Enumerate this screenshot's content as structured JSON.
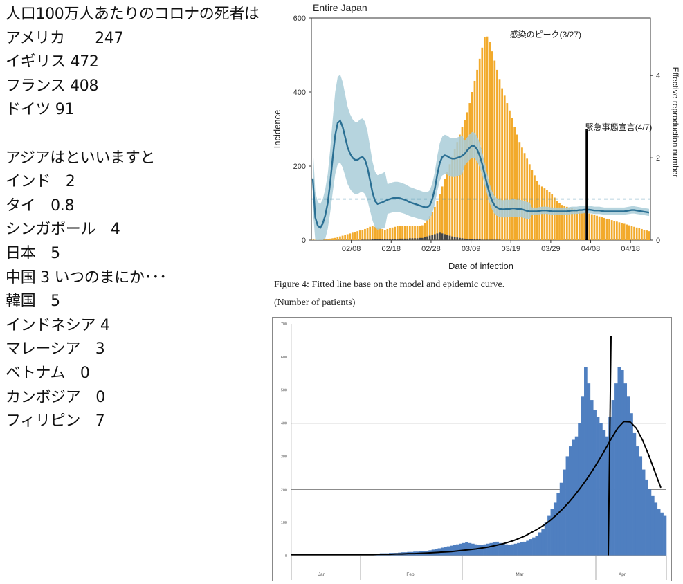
{
  "left_panel": {
    "lines": [
      "人口100万人あたりのコロナの死者は",
      "アメリカ　　247",
      "イギリス 472",
      "フランス 408",
      "ドイツ 91",
      "",
      "アジアはといいますと",
      "インド　2",
      "タイ　0.8",
      "シンガポール　4",
      "日本　5",
      "中国 3 いつのまにか･･･",
      "韓国　5",
      "インドネシア 4",
      "マレーシア　3",
      "ベトナム　0",
      "カンボジア　0",
      "フィリピン　7"
    ]
  },
  "figure_caption": {
    "line1": "Figure 4: Fitted line base on the model and epidemic curve.",
    "line2": "(Number of patients)"
  },
  "colors": {
    "orange_bars": "#f2aa2b",
    "dark_bars": "#454545",
    "band": "#a9ccd8",
    "fit_line": "#2a6f93",
    "dashed": "#4a90b0",
    "blue_bars": "#4f7fc0"
  },
  "chart_data": [
    {
      "type": "bar",
      "title": "Entire Japan",
      "xlabel": "Date of infection",
      "ylabel": "Incidence",
      "y2label": "Effective reproduction number",
      "ylim": [
        0,
        600
      ],
      "y_ticks": [
        0,
        200,
        400,
        600
      ],
      "y2lim": [
        0,
        5.4
      ],
      "y2_ticks": [
        0,
        2,
        4
      ],
      "x_ticks": [
        "02/08",
        "02/18",
        "02/28",
        "03/09",
        "03/19",
        "03/29",
        "04/08",
        "04/18"
      ],
      "x_start": "01/29",
      "x_end": "04/23",
      "annotations": [
        {
          "text": "感染のピーク(3/27)",
          "date": "03/27"
        },
        {
          "text": "緊急事態宣言(4/7)",
          "date": "04/07"
        }
      ],
      "series": [
        {
          "type": "bar",
          "values": [
            1,
            1,
            1,
            2,
            2,
            3,
            3,
            4,
            5,
            6,
            8,
            10,
            12,
            14,
            16,
            18,
            20,
            22,
            24,
            26,
            28,
            30,
            33,
            36,
            38,
            36,
            34,
            32,
            30,
            28,
            30,
            32,
            34,
            36,
            38,
            38,
            38,
            38,
            38,
            38,
            38,
            38,
            38,
            38,
            40,
            45,
            55,
            65,
            75,
            90,
            105,
            125,
            145,
            165,
            185,
            205,
            225,
            245,
            265,
            285,
            305,
            325,
            345,
            370,
            400,
            430,
            460,
            490,
            520,
            548,
            550,
            535,
            510,
            485,
            460,
            435,
            410,
            390,
            370,
            350,
            330,
            305,
            285,
            265,
            250,
            235,
            220,
            205,
            190,
            175,
            160,
            150,
            145,
            140,
            135,
            130,
            125,
            115,
            105,
            100,
            95,
            92,
            90,
            88,
            86,
            84,
            82,
            80,
            78,
            76,
            74,
            72,
            70,
            68,
            66,
            64,
            62,
            60,
            58,
            56,
            54,
            52,
            50,
            48,
            46,
            44,
            42,
            40,
            38,
            36,
            34,
            32,
            30,
            28,
            26,
            24
          ]
        },
        {
          "type": "bar",
          "values": [
            0,
            0,
            0,
            0,
            0,
            0,
            0,
            0,
            0,
            0,
            0,
            0,
            0,
            0,
            0,
            0,
            0,
            0,
            0,
            0,
            1,
            1,
            1,
            1,
            2,
            2,
            2,
            2,
            2,
            2,
            3,
            3,
            3,
            3,
            3,
            4,
            4,
            4,
            4,
            5,
            5,
            5,
            5,
            6,
            6,
            8,
            10,
            12,
            14,
            16,
            18,
            20,
            18,
            16,
            14,
            12,
            10,
            8,
            7,
            6,
            5,
            4,
            3,
            3,
            2,
            2,
            2,
            2,
            1,
            1,
            1,
            1,
            1,
            1,
            1,
            1,
            0,
            0,
            0,
            0,
            0,
            0,
            0,
            0,
            0,
            0,
            0,
            0,
            0,
            0
          ]
        },
        {
          "type": "line",
          "values": [
            1.5,
            0.55,
            0.35,
            0.3,
            0.4,
            0.6,
            0.9,
            1.4,
            2.0,
            2.55,
            2.85,
            2.9,
            2.75,
            2.5,
            2.25,
            2.1,
            2.0,
            1.95,
            1.95,
            2.0,
            2.02,
            1.95,
            1.75,
            1.45,
            1.15,
            0.95,
            0.88,
            0.9,
            0.92,
            0.95,
            0.98,
            1.0,
            1.02,
            1.03,
            1.03,
            1.02,
            1.0,
            0.98,
            0.95,
            0.92,
            0.9,
            0.88,
            0.86,
            0.84,
            0.82,
            0.8,
            0.8,
            0.85,
            1.0,
            1.25,
            1.6,
            1.88,
            2.02,
            2.06,
            2.04,
            2.0,
            1.98,
            1.98,
            2.0,
            2.02,
            2.05,
            2.1,
            2.18,
            2.25,
            2.3,
            2.28,
            2.2,
            2.05,
            1.85,
            1.6,
            1.35,
            1.12,
            0.95,
            0.84,
            0.79,
            0.76,
            0.75,
            0.75,
            0.76,
            0.76,
            0.77,
            0.77,
            0.76,
            0.76,
            0.75,
            0.73,
            0.71,
            0.7,
            0.7,
            0.7,
            0.7,
            0.71,
            0.72,
            0.72,
            0.72,
            0.71,
            0.7,
            0.7,
            0.7,
            0.7,
            0.7,
            0.7,
            0.7,
            0.71,
            0.72,
            0.72,
            0.72,
            0.73,
            0.73,
            0.74,
            0.74,
            0.74,
            0.73,
            0.72,
            0.72,
            0.72,
            0.71,
            0.7,
            0.7,
            0.7,
            0.7,
            0.7,
            0.7,
            0.7,
            0.7,
            0.7,
            0.71,
            0.72,
            0.73,
            0.73,
            0.72,
            0.71,
            0.7,
            0.69,
            0.68,
            0.67
          ]
        },
        {
          "type": "reference_line",
          "value": 1.0
        }
      ]
    },
    {
      "type": "bar",
      "ylim": [
        0,
        700
      ],
      "y_ticks": [
        0,
        100,
        200,
        300,
        400,
        500,
        600,
        700
      ],
      "y_tick_labels": [
        "0",
        "100",
        "200",
        "300",
        "400",
        "500",
        "600",
        "700"
      ],
      "x_month_labels": [
        "Jan",
        "Feb",
        "Mar",
        "Apr"
      ],
      "series": [
        {
          "type": "bar",
          "values": [
            2,
            2,
            2,
            2,
            2,
            2,
            2,
            2,
            2,
            2,
            2,
            2,
            2,
            2,
            2,
            3,
            3,
            3,
            3,
            4,
            4,
            4,
            5,
            5,
            5,
            5,
            6,
            6,
            6,
            7,
            7,
            7,
            8,
            8,
            8,
            9,
            10,
            10,
            11,
            11,
            12,
            12,
            13,
            13,
            14,
            16,
            18,
            20,
            22,
            24,
            26,
            28,
            30,
            32,
            34,
            36,
            38,
            40,
            38,
            36,
            34,
            33,
            32,
            34,
            36,
            38,
            40,
            42,
            38,
            36,
            34,
            33,
            34,
            36,
            38,
            40,
            42,
            45,
            50,
            55,
            60,
            70,
            80,
            100,
            120,
            140,
            160,
            190,
            220,
            260,
            300,
            330,
            350,
            360,
            400,
            480,
            570,
            520,
            470,
            440,
            420,
            400,
            380,
            360,
            420,
            470,
            520,
            570,
            560,
            520,
            480,
            430,
            370,
            330,
            300,
            260,
            230,
            200,
            180,
            160,
            140,
            130,
            120
          ]
        },
        {
          "type": "line",
          "values": [
            2,
            2,
            2,
            2,
            2,
            2,
            2,
            2,
            2,
            2,
            3,
            3,
            3,
            3,
            4,
            4,
            4,
            5,
            5,
            6,
            6,
            7,
            8,
            9,
            10,
            11,
            12,
            14,
            16,
            18,
            20,
            23,
            26,
            30,
            34,
            39,
            45,
            52,
            60,
            70,
            80,
            92,
            106,
            122,
            140,
            160,
            182,
            206,
            232,
            260,
            290,
            322,
            355,
            385,
            405,
            404,
            385,
            350,
            305,
            255,
            205
          ]
        },
        {
          "type": "reference_line",
          "label": "vertical marker"
        }
      ]
    }
  ]
}
